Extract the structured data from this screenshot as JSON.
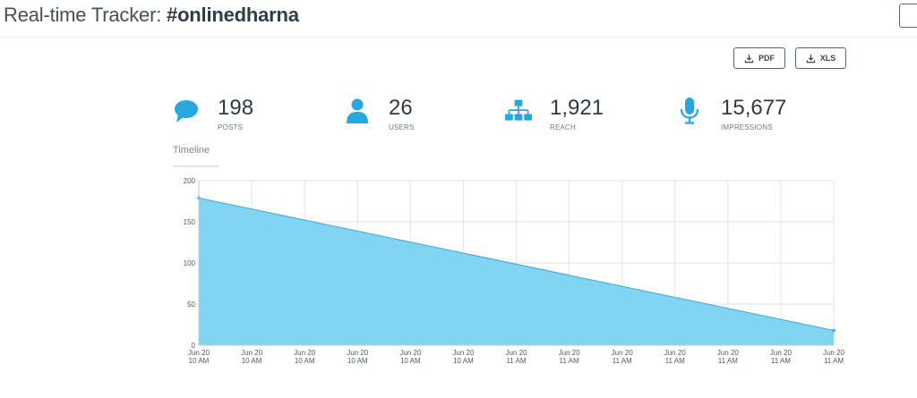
{
  "header": {
    "title_prefix": "Real-time Tracker: ",
    "hashtag": "#onlinedharna"
  },
  "export": {
    "pdf_label": "PDF",
    "xls_label": "XLS"
  },
  "stats": [
    {
      "icon": "speech-bubble-icon",
      "value": "198",
      "label": "POSTS"
    },
    {
      "icon": "user-icon",
      "value": "26",
      "label": "USERS"
    },
    {
      "icon": "org-chart-icon",
      "value": "1,921",
      "label": "REACH"
    },
    {
      "icon": "microphone-icon",
      "value": "15,677",
      "label": "IMPRESSIONS"
    }
  ],
  "tabs": [
    "Timeline"
  ],
  "colors": {
    "accent": "#2aa6df",
    "area_fill": "#81d4f2",
    "area_line": "#3aa9d9"
  },
  "chart_data": {
    "type": "area",
    "x": [
      [
        "Jun 20",
        "10 AM"
      ],
      [
        "Jun 20",
        "10 AM"
      ],
      [
        "Jun 20",
        "10 AM"
      ],
      [
        "Jun 20",
        "10 AM"
      ],
      [
        "Jun 20",
        "10 AM"
      ],
      [
        "Jun 20",
        "10 AM"
      ],
      [
        "Jun 20",
        "11 AM"
      ],
      [
        "Jun 20",
        "11 AM"
      ],
      [
        "Jun 20",
        "11 AM"
      ],
      [
        "Jun 20",
        "11 AM"
      ],
      [
        "Jun 20",
        "11 AM"
      ],
      [
        "Jun 20",
        "11 AM"
      ],
      [
        "Jun 20",
        "11 AM"
      ]
    ],
    "start_value": 179,
    "end_value": 18,
    "yticks": [
      0,
      50,
      100,
      150,
      200
    ],
    "ylim": [
      0,
      200
    ],
    "grid": true
  }
}
